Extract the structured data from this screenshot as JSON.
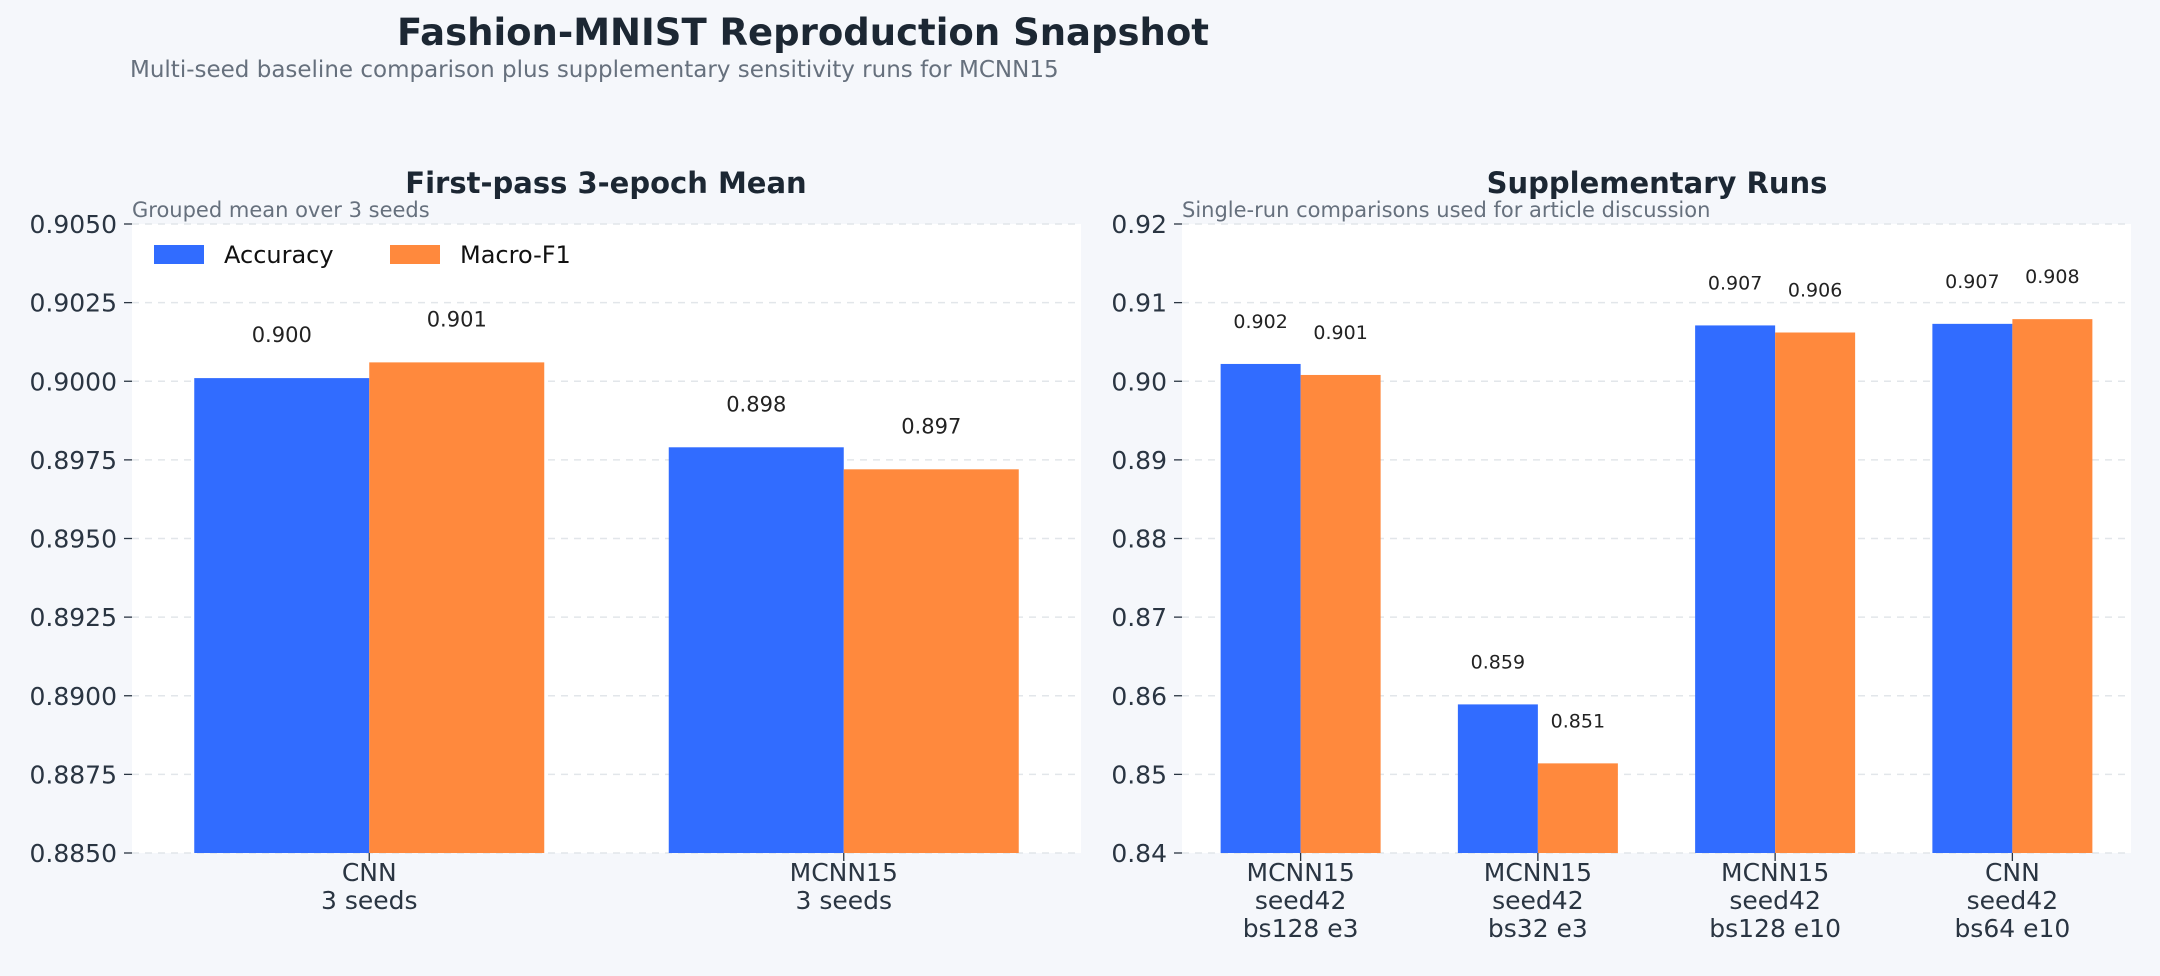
{
  "title": "Fashion-MNIST Reproduction Snapshot",
  "subtitle": "Multi-seed baseline comparison plus supplementary sensitivity runs for MCNN15",
  "colors": {
    "background": "#f5f7fb",
    "plot_background": "#ffffff",
    "accuracy": "#316cff",
    "macro_f1": "#ff893d",
    "title_text": "#1c2733",
    "subtitle_text": "#66707d",
    "tick_text": "#2a3542",
    "grid": "#e2e6ea"
  },
  "chart_data": [
    {
      "type": "bar",
      "title": "First-pass 3-epoch Mean",
      "subtitle": "Grouped mean over 3 seeds",
      "categories": [
        [
          "CNN",
          "3 seeds"
        ],
        [
          "MCNN15",
          "3 seeds"
        ]
      ],
      "series": [
        {
          "name": "Accuracy",
          "values": [
            0.9001,
            0.8979
          ],
          "labels": [
            "0.900",
            "0.898"
          ]
        },
        {
          "name": "Macro-F1",
          "values": [
            0.9006,
            0.8972
          ],
          "labels": [
            "0.901",
            "0.897"
          ]
        }
      ],
      "ylim": [
        0.885,
        0.905
      ],
      "yticks": [
        "0.8850",
        "0.8875",
        "0.8900",
        "0.8925",
        "0.8950",
        "0.8975",
        "0.9000",
        "0.9025",
        "0.9050"
      ],
      "xlabel": "",
      "ylabel": "",
      "grid": true,
      "legend": "top-left"
    },
    {
      "type": "bar",
      "title": "Supplementary Runs",
      "subtitle": "Single-run comparisons used for article discussion",
      "categories": [
        [
          "MCNN15",
          "seed42",
          "bs128 e3"
        ],
        [
          "MCNN15",
          "seed42",
          "bs32 e3"
        ],
        [
          "MCNN15",
          "seed42",
          "bs128 e10"
        ],
        [
          "CNN",
          "seed42",
          "bs64 e10"
        ]
      ],
      "series": [
        {
          "name": "Accuracy",
          "values": [
            0.9022,
            0.8589,
            0.9071,
            0.9073
          ],
          "labels": [
            "0.902",
            "0.859",
            "0.907",
            "0.907"
          ]
        },
        {
          "name": "Macro-F1",
          "values": [
            0.9008,
            0.8514,
            0.9062,
            0.9079
          ],
          "labels": [
            "0.901",
            "0.851",
            "0.906",
            "0.908"
          ]
        }
      ],
      "ylim": [
        0.84,
        0.92
      ],
      "yticks": [
        "0.84",
        "0.85",
        "0.86",
        "0.87",
        "0.88",
        "0.89",
        "0.90",
        "0.91",
        "0.92"
      ],
      "xlabel": "",
      "ylabel": "",
      "grid": true,
      "legend": "none"
    }
  ]
}
